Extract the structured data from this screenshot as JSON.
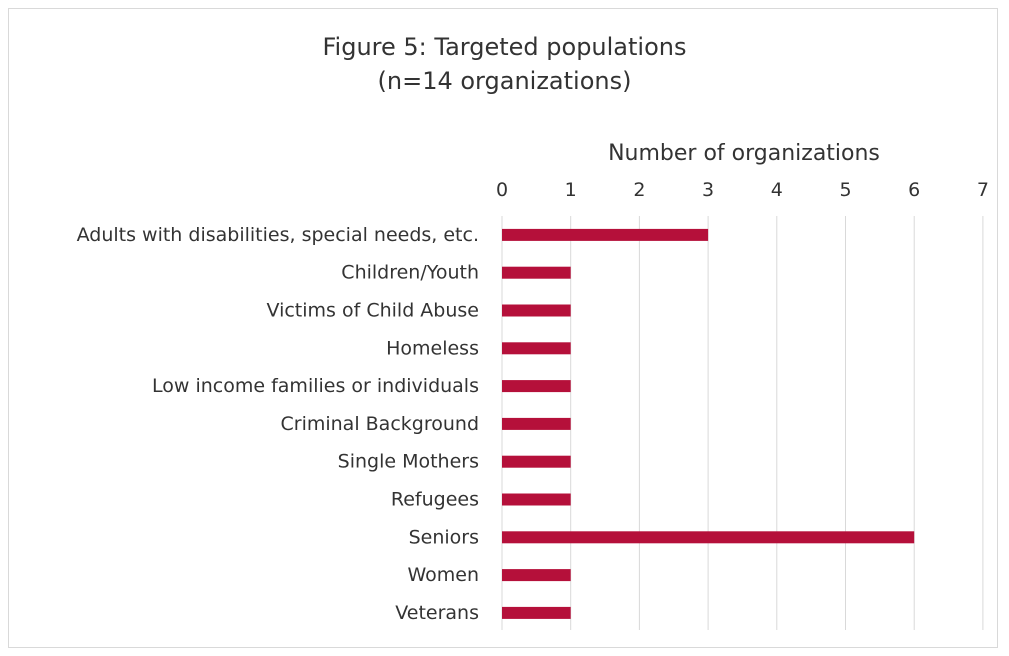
{
  "chart_data": {
    "type": "bar",
    "orientation": "horizontal",
    "title": "Figure 5: Targeted populations",
    "subtitle": "(n=14 organizations)",
    "xlabel": "Number of organizations",
    "ylabel": "",
    "xaxis_position": "top",
    "xlim": [
      0,
      7
    ],
    "xticks": [
      "0",
      "1",
      "2",
      "3",
      "4",
      "5",
      "6",
      "7"
    ],
    "grid": true,
    "legend": "none",
    "bar_color": "#b5103a",
    "categories": [
      "Adults with disabilities, special needs, etc.",
      "Children/Youth",
      "Victims of Child Abuse",
      "Homeless",
      "Low income families or individuals",
      "Criminal Background",
      "Single Mothers",
      "Refugees",
      "Seniors",
      "Women",
      "Veterans"
    ],
    "values": [
      3,
      1,
      1,
      1,
      1,
      1,
      1,
      1,
      6,
      1,
      1
    ]
  }
}
